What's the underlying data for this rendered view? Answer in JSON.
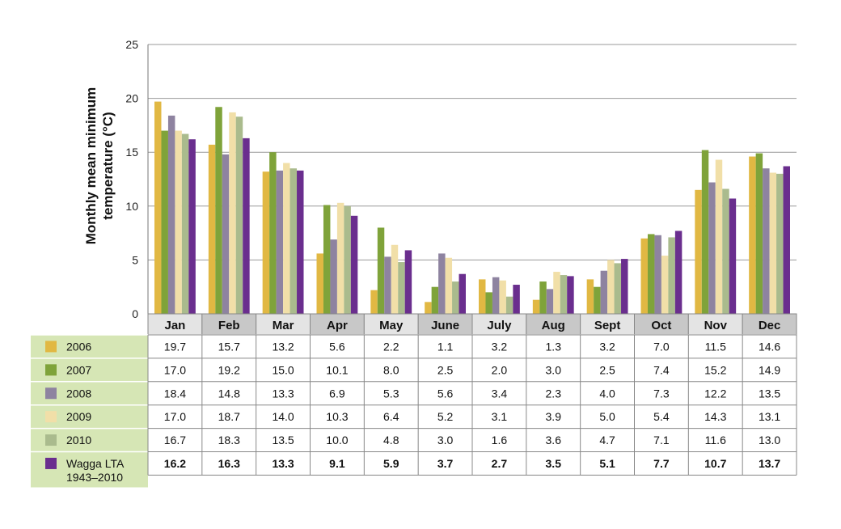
{
  "chart_data": {
    "type": "bar",
    "ylabel": "Monthly mean minimum temperature (°C)",
    "ylabel_lines": [
      "Monthly mean minimum",
      "temperature (°C)"
    ],
    "ylim": [
      0,
      25
    ],
    "yticks": [
      0,
      5,
      10,
      15,
      20,
      25
    ],
    "grid": true,
    "categories": [
      "Jan",
      "Feb",
      "Mar",
      "Apr",
      "May",
      "June",
      "July",
      "Aug",
      "Sept",
      "Oct",
      "Nov",
      "Dec"
    ],
    "series": [
      {
        "name": "2006",
        "color": "#e1b843",
        "values": [
          19.7,
          15.7,
          13.2,
          5.6,
          2.2,
          1.1,
          3.2,
          1.3,
          3.2,
          7.0,
          11.5,
          14.6
        ],
        "labels": [
          "19.7",
          "15.7",
          "13.2",
          "5.6",
          "2.2",
          "1.1",
          "3.2",
          "1.3",
          "3.2",
          "7.0",
          "11.5",
          "14.6"
        ]
      },
      {
        "name": "2007",
        "color": "#7fa33a",
        "values": [
          17.0,
          19.2,
          15.0,
          10.1,
          8.0,
          2.5,
          2.0,
          3.0,
          2.5,
          7.4,
          15.2,
          14.9
        ],
        "labels": [
          "17.0",
          "19.2",
          "15.0",
          "10.1",
          "8.0",
          "2.5",
          "2.0",
          "3.0",
          "2.5",
          "7.4",
          "15.2",
          "14.9"
        ]
      },
      {
        "name": "2008",
        "color": "#8e83a0",
        "values": [
          18.4,
          14.8,
          13.3,
          6.9,
          5.3,
          5.6,
          3.4,
          2.3,
          4.0,
          7.3,
          12.2,
          13.5
        ],
        "labels": [
          "18.4",
          "14.8",
          "13.3",
          "6.9",
          "5.3",
          "5.6",
          "3.4",
          "2.3",
          "4.0",
          "7.3",
          "12.2",
          "13.5"
        ]
      },
      {
        "name": "2009",
        "color": "#f1dfa8",
        "values": [
          17.0,
          18.7,
          14.0,
          10.3,
          6.4,
          5.2,
          3.1,
          3.9,
          5.0,
          5.4,
          14.3,
          13.1
        ],
        "labels": [
          "17.0",
          "18.7",
          "14.0",
          "10.3",
          "6.4",
          "5.2",
          "3.1",
          "3.9",
          "5.0",
          "5.4",
          "14.3",
          "13.1"
        ]
      },
      {
        "name": "2010",
        "color": "#aabb8d",
        "values": [
          16.7,
          18.3,
          13.5,
          10.0,
          4.8,
          3.0,
          1.6,
          3.6,
          4.7,
          7.1,
          11.6,
          13.0
        ],
        "labels": [
          "16.7",
          "18.3",
          "13.5",
          "10.0",
          "4.8",
          "3.0",
          "1.6",
          "3.6",
          "4.7",
          "7.1",
          "11.6",
          "13.0"
        ]
      },
      {
        "name": "Wagga LTA 1943–2010",
        "name_lines": [
          "Wagga LTA",
          "1943–2010"
        ],
        "color": "#6a2e8e",
        "bold": true,
        "values": [
          16.2,
          16.3,
          13.3,
          9.1,
          5.9,
          3.7,
          2.7,
          3.5,
          5.1,
          7.7,
          10.7,
          13.7
        ],
        "labels": [
          "16.2",
          "16.3",
          "13.3",
          "9.1",
          "5.9",
          "3.7",
          "2.7",
          "3.5",
          "5.1",
          "7.7",
          "10.7",
          "13.7"
        ]
      }
    ],
    "colors": {
      "month_header_light": "#e4e4e4",
      "month_header_dark": "#c8c8c8",
      "legend_background": "#d6e6b5",
      "gridline": "#999999",
      "table_border": "#888888"
    }
  }
}
